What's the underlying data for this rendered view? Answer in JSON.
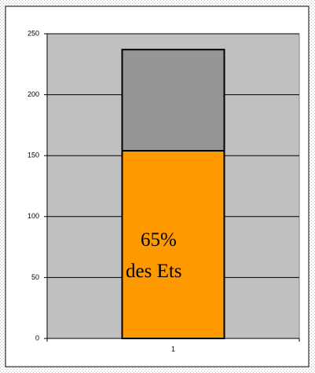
{
  "chart_data": {
    "type": "stacked_bar",
    "categories": [
      "1"
    ],
    "series": [
      {
        "color": "#ff9900",
        "values": [
          154
        ]
      },
      {
        "color": "#969696",
        "values": [
          83
        ]
      }
    ],
    "ylim": [
      0,
      250
    ],
    "yticks": [
      0,
      50,
      100,
      150,
      200,
      250
    ],
    "grid": true,
    "annotation": [
      "65%",
      "des Ets"
    ]
  }
}
